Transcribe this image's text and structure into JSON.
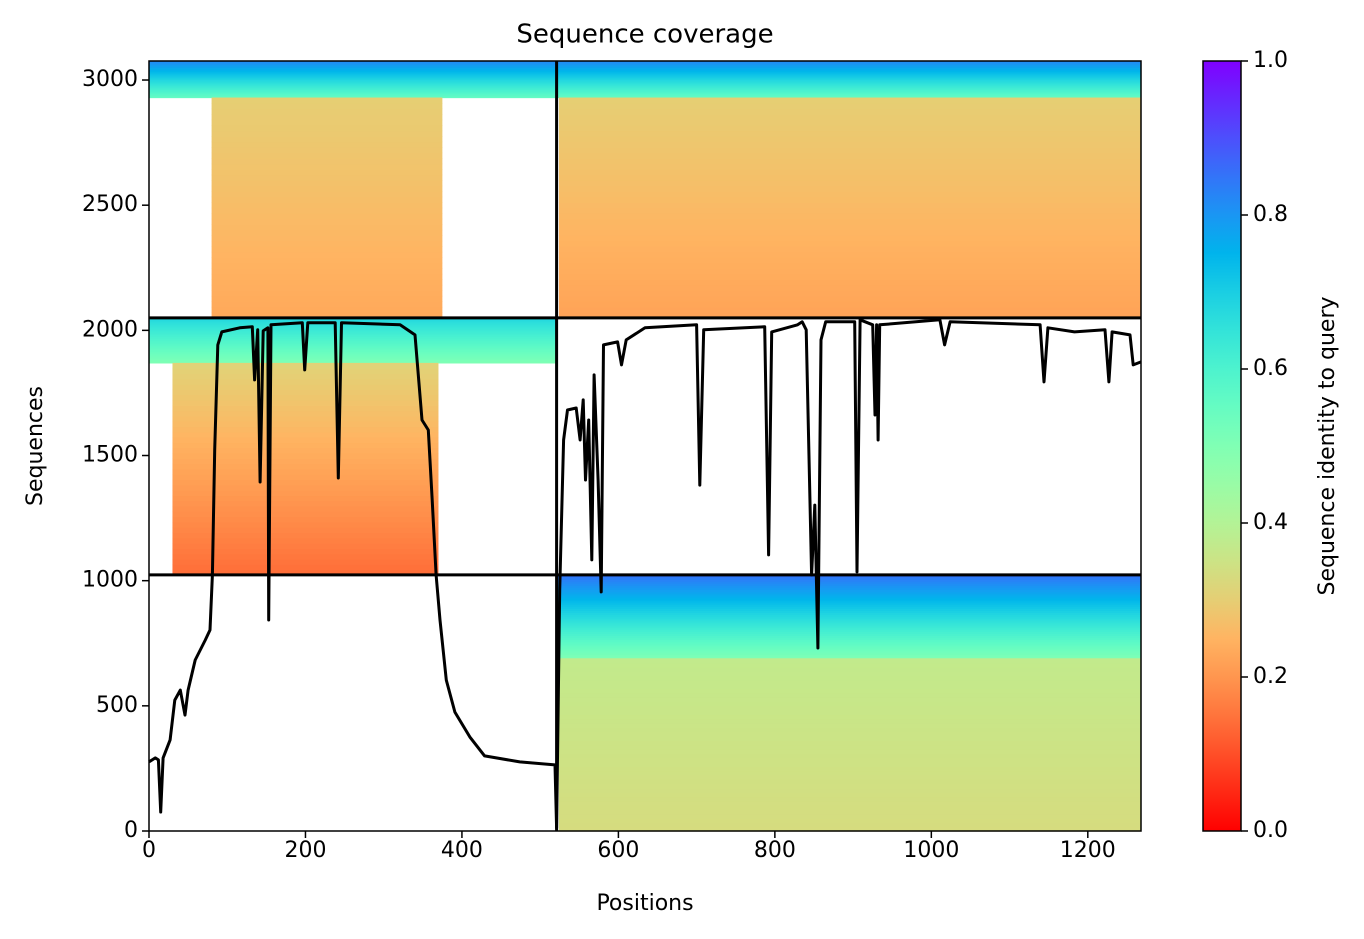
{
  "chart_data": {
    "type": "coverage",
    "title": "Sequence coverage",
    "x_label": "Positions",
    "y_label": "Sequences",
    "colorbar_label": "Sequence identity to query",
    "xlim": [
      0,
      1268
    ],
    "ylim": [
      0,
      3076
    ],
    "xticks": [
      0,
      200,
      400,
      600,
      800,
      1000,
      1200
    ],
    "yticks": [
      0,
      500,
      1000,
      1500,
      2000,
      2500,
      3000
    ],
    "colorbar_lim": [
      0,
      1
    ],
    "colorbar_ticks": [
      {
        "value": 0,
        "label": "0.0"
      },
      {
        "value": 0.2,
        "label": "0.2"
      },
      {
        "value": 0.4,
        "label": "0.4"
      },
      {
        "value": 0.6,
        "label": "0.6"
      },
      {
        "value": 0.8,
        "label": "0.8"
      },
      {
        "value": 1,
        "label": "1.0"
      }
    ],
    "colormap": "rainbow_r",
    "dividers": {
      "x": [
        521
      ],
      "y": [
        1023,
        2050
      ]
    },
    "blocks": [
      {
        "x": [
          0,
          521
        ],
        "y": [
          2930,
          3076
        ],
        "identity": [
          0.55,
          0.82
        ]
      },
      {
        "x": [
          80,
          375
        ],
        "y": [
          2050,
          2930
        ],
        "identity": [
          0.23,
          0.3
        ]
      },
      {
        "x": [
          0,
          521
        ],
        "y": [
          1870,
          2050
        ],
        "identity": [
          0.5,
          0.68
        ]
      },
      {
        "x": [
          30,
          370
        ],
        "y": [
          1023,
          1870
        ],
        "identity": [
          0.14,
          0.31
        ]
      },
      {
        "x": [
          521,
          1268
        ],
        "y": [
          2930,
          3076
        ],
        "identity": [
          0.55,
          0.82
        ]
      },
      {
        "x": [
          524,
          1268
        ],
        "y": [
          2050,
          2930
        ],
        "identity": [
          0.22,
          0.3
        ]
      },
      {
        "x": [
          521,
          1268
        ],
        "y": [
          690,
          1023
        ],
        "identity": [
          0.5,
          0.85
        ]
      },
      {
        "x": [
          524,
          1268
        ],
        "y": [
          0,
          690
        ],
        "identity": [
          0.33,
          0.37
        ]
      }
    ],
    "line": {
      "color": "#000000",
      "x": [
        0,
        8,
        12,
        15,
        18,
        27,
        33,
        40,
        46,
        50,
        59,
        72,
        78,
        81,
        84,
        88,
        93,
        116,
        132,
        135,
        139,
        142,
        146,
        152,
        153,
        156,
        196,
        199,
        203,
        238,
        242,
        246,
        321,
        340,
        349,
        357,
        362,
        367,
        372,
        380,
        391,
        410,
        429,
        474,
        519,
        521,
        525,
        530,
        535,
        546,
        551,
        555,
        558,
        562,
        566,
        569,
        574,
        578,
        581,
        599,
        604,
        610,
        634,
        700,
        704,
        709,
        787,
        792,
        796,
        829,
        835,
        840,
        847,
        851,
        855,
        859,
        865,
        902,
        905,
        909,
        925,
        928,
        930,
        932,
        934,
        1011,
        1017,
        1024,
        1139,
        1144,
        1149,
        1183,
        1222,
        1227,
        1231,
        1254,
        1258,
        1268
      ],
      "y": [
        276,
        292,
        284,
        76,
        292,
        364,
        523,
        563,
        463,
        563,
        683,
        763,
        803,
        1023,
        1522,
        1942,
        1994,
        2010,
        2014,
        1802,
        2002,
        1394,
        1998,
        2010,
        843,
        2022,
        2030,
        1842,
        2030,
        2030,
        1410,
        2030,
        2022,
        1982,
        1642,
        1602,
        1322,
        1023,
        843,
        603,
        475,
        376,
        300,
        276,
        264,
        12,
        963,
        1562,
        1682,
        1690,
        1562,
        1722,
        1402,
        1642,
        1083,
        1822,
        1402,
        955,
        1942,
        1954,
        1862,
        1962,
        2010,
        2022,
        1382,
        2002,
        2014,
        1103,
        1994,
        2022,
        2034,
        2002,
        1023,
        1302,
        731,
        1962,
        2034,
        2034,
        1035,
        2042,
        2022,
        1662,
        2022,
        1562,
        2022,
        2042,
        1942,
        2034,
        2022,
        1794,
        2010,
        1994,
        2002,
        1794,
        1994,
        1982,
        1862,
        1874
      ]
    }
  }
}
